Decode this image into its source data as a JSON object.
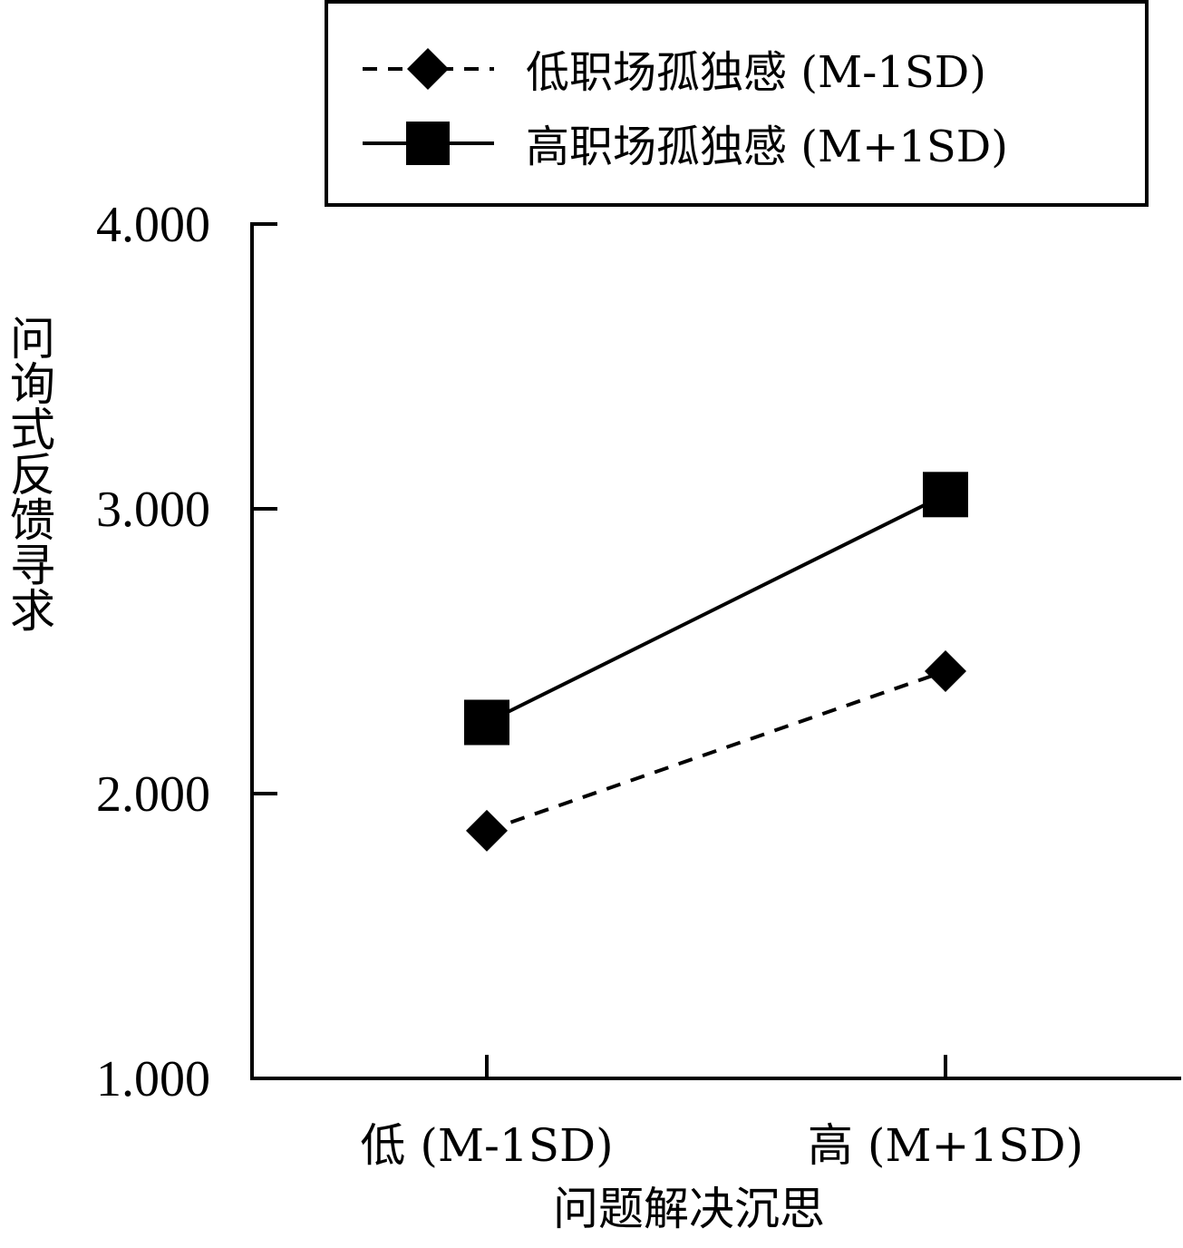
{
  "chart_data": {
    "type": "line",
    "categories": [
      "低 (M-1SD)",
      "高 (M+1SD)"
    ],
    "series": [
      {
        "name": "低职场孤独感 (M-1SD)",
        "values": [
          1.87,
          2.43
        ],
        "line_style": "dashed",
        "marker": "diamond",
        "color": "#000000"
      },
      {
        "name": "高职场孤独感 (M+1SD)",
        "values": [
          2.25,
          3.05
        ],
        "line_style": "solid",
        "marker": "square",
        "color": "#000000"
      }
    ],
    "xlabel": "问题解决沉思",
    "ylabel": "问询式反馈寻求",
    "ylim": [
      1.0,
      4.0
    ],
    "yticks": [
      "1.000",
      "2.000",
      "3.000",
      "4.000"
    ],
    "grid": false,
    "legend_position": "top"
  }
}
